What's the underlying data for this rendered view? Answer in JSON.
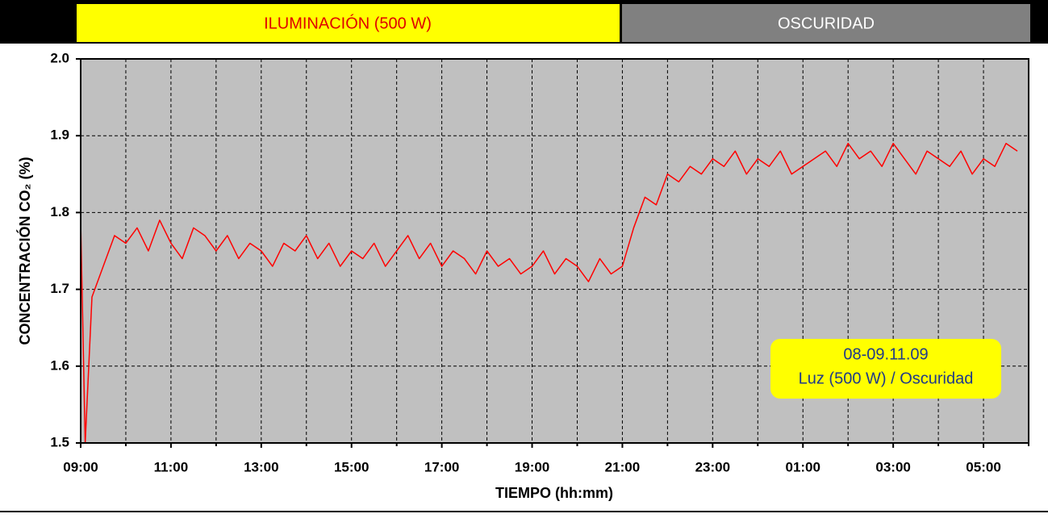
{
  "banner": {
    "light": "ILUMINACIÓN (500 W)",
    "dark": "OSCURIDAD"
  },
  "chart_data": {
    "type": "line",
    "x_label": "TIEMPO (hh:mm)",
    "y_label": "CONCENTRACIÓN CO₂ (%)",
    "annotation": [
      "08-09.11.09",
      "Luz (500 W) / Oscuridad"
    ],
    "x": [
      9,
      9.1,
      9.25,
      9.5,
      9.75,
      10,
      10.25,
      10.5,
      10.75,
      11,
      11.25,
      11.5,
      11.75,
      12,
      12.25,
      12.5,
      12.75,
      13,
      13.25,
      13.5,
      13.75,
      14,
      14.25,
      14.5,
      14.75,
      15,
      15.25,
      15.5,
      15.75,
      16,
      16.25,
      16.5,
      16.75,
      17,
      17.25,
      17.5,
      17.75,
      18,
      18.25,
      18.5,
      18.75,
      19,
      19.25,
      19.5,
      19.75,
      20,
      20.25,
      20.5,
      20.75,
      21,
      21.25,
      21.5,
      21.75,
      22,
      22.25,
      22.5,
      22.75,
      23,
      23.25,
      23.5,
      23.75,
      24,
      24.25,
      24.5,
      24.75,
      25,
      25.25,
      25.5,
      25.75,
      26,
      26.25,
      26.5,
      26.75,
      27,
      27.25,
      27.5,
      27.75,
      28,
      28.25,
      28.5,
      28.75,
      29,
      29.25,
      29.5,
      29.75
    ],
    "series": [
      {
        "name": "CO₂",
        "color": "#ff0000",
        "values": [
          1.79,
          1.5,
          1.69,
          1.73,
          1.77,
          1.76,
          1.78,
          1.75,
          1.79,
          1.76,
          1.74,
          1.78,
          1.77,
          1.75,
          1.77,
          1.74,
          1.76,
          1.75,
          1.73,
          1.76,
          1.75,
          1.77,
          1.74,
          1.76,
          1.73,
          1.75,
          1.74,
          1.76,
          1.73,
          1.75,
          1.77,
          1.74,
          1.76,
          1.73,
          1.75,
          1.74,
          1.72,
          1.75,
          1.73,
          1.74,
          1.72,
          1.73,
          1.75,
          1.72,
          1.74,
          1.73,
          1.71,
          1.74,
          1.72,
          1.73,
          1.78,
          1.82,
          1.81,
          1.85,
          1.84,
          1.86,
          1.85,
          1.87,
          1.86,
          1.88,
          1.85,
          1.87,
          1.86,
          1.88,
          1.85,
          1.86,
          1.87,
          1.88,
          1.86,
          1.89,
          1.87,
          1.88,
          1.86,
          1.89,
          1.87,
          1.85,
          1.88,
          1.87,
          1.86,
          1.88,
          1.85,
          1.87,
          1.86,
          1.89,
          1.88
        ]
      }
    ],
    "xlim": [
      9,
      30
    ],
    "xticks": [
      {
        "value": 9,
        "label": "09:00"
      },
      {
        "value": 11,
        "label": "11:00"
      },
      {
        "value": 13,
        "label": "13:00"
      },
      {
        "value": 15,
        "label": "15:00"
      },
      {
        "value": 17,
        "label": "17:00"
      },
      {
        "value": 19,
        "label": "19:00"
      },
      {
        "value": 21,
        "label": "21:00"
      },
      {
        "value": 23,
        "label": "23:00"
      },
      {
        "value": 25,
        "label": "01:00"
      },
      {
        "value": 27,
        "label": "03:00"
      },
      {
        "value": 29,
        "label": "05:00"
      }
    ],
    "x_minor_ticks": [
      10,
      12,
      14,
      16,
      18,
      20,
      22,
      24,
      26,
      28,
      30
    ],
    "ylim": [
      1.5,
      2.0
    ],
    "yticks": [
      1.5,
      1.6,
      1.7,
      1.8,
      1.9,
      {
        "value": 2.0,
        "label": "2.0"
      }
    ],
    "grid": true
  }
}
